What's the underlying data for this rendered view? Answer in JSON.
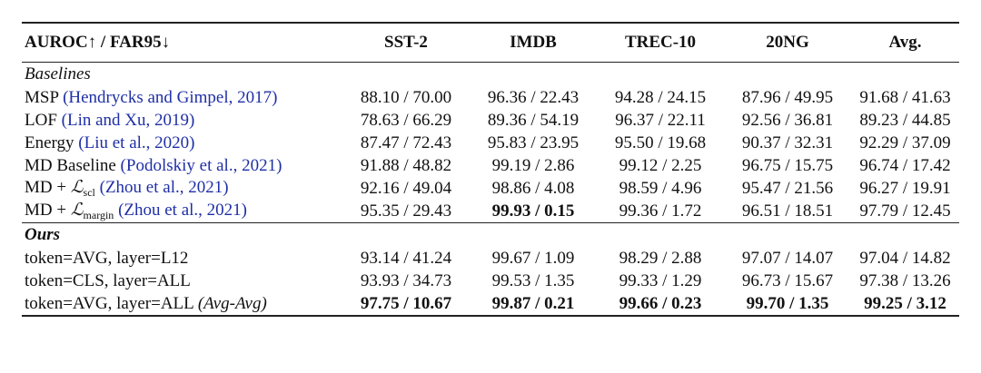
{
  "header": {
    "metric": "AUROC↑ / FAR95↓",
    "columns": [
      "SST-2",
      "IMDB",
      "TREC-10",
      "20NG",
      "Avg."
    ]
  },
  "sections": {
    "baselines_title": "Baselines",
    "ours_title": "Ours"
  },
  "baselines": [
    {
      "name": "MSP",
      "cite": "(Hendrycks and Gimpel, 2017)",
      "values": [
        "88.10 / 70.00",
        "96.36 / 22.43",
        "94.28 / 24.15",
        "87.96 / 49.95",
        "91.68 / 41.63"
      ]
    },
    {
      "name": "LOF",
      "cite": "(Lin and Xu, 2019)",
      "values": [
        "78.63 / 66.29",
        "89.36 / 54.19",
        "96.37 / 22.11",
        "92.56 / 36.81",
        "89.23 / 44.85"
      ]
    },
    {
      "name": "Energy",
      "cite": "(Liu et al., 2020)",
      "values": [
        "87.47 / 72.43",
        "95.83 / 23.95",
        "95.50 / 19.68",
        "90.37 / 32.31",
        "92.29 / 37.09"
      ]
    },
    {
      "name": "MD Baseline",
      "cite": "(Podolskiy et al., 2021)",
      "values": [
        "91.88 / 48.82",
        "99.19 / 2.86",
        "99.12 / 2.25",
        "96.75 / 15.75",
        "96.74 / 17.42"
      ]
    },
    {
      "name_prefix": "MD + ",
      "loss_symbol": "ℒ",
      "loss_sub": "scl",
      "cite": "(Zhou et al., 2021)",
      "values": [
        "92.16 / 49.04",
        "98.86 / 4.08",
        "98.59 / 4.96",
        "95.47 / 21.56",
        "96.27 / 19.91"
      ]
    },
    {
      "name_prefix": "MD + ",
      "loss_symbol": "ℒ",
      "loss_sub": "margin",
      "cite": "(Zhou et al., 2021)",
      "values": [
        "95.35 / 29.43",
        "99.93 / 0.15",
        "99.36 / 1.72",
        "96.51 / 18.51",
        "97.79 / 12.45"
      ]
    }
  ],
  "ours": [
    {
      "name": "token=AVG, layer=L12",
      "values": [
        "93.14 / 41.24",
        "99.67 / 1.09",
        "98.29 / 2.88",
        "97.07 / 14.07",
        "97.04 / 14.82"
      ]
    },
    {
      "name": "token=CLS, layer=ALL",
      "values": [
        "93.93 / 34.73",
        "99.53 / 1.35",
        "99.33 / 1.29",
        "96.73 / 15.67",
        "97.38 / 13.26"
      ]
    },
    {
      "name": "token=AVG, layer=ALL",
      "name_italic": "(Avg-Avg)",
      "values": [
        "97.75 / 10.67",
        "99.87 / 0.21",
        "99.66 / 0.23",
        "99.70 / 1.35",
        "99.25 / 3.12"
      ]
    }
  ],
  "colors": {
    "citation": "#1f2fa6",
    "text": "#111111",
    "rule": "#222222"
  }
}
